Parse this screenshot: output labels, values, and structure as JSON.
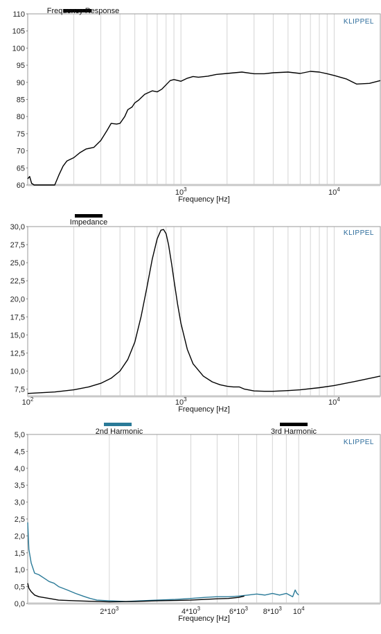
{
  "brand": "KLIPPEL",
  "chart_data": [
    {
      "type": "line",
      "title": "Frequency Response",
      "xlabel": "Frequency  [Hz]",
      "ylabel": "",
      "xscale": "log",
      "xlim": [
        100,
        20000
      ],
      "ylim": [
        60,
        110
      ],
      "yticks": [
        "60",
        "65",
        "70",
        "75",
        "80",
        "85",
        "90",
        "95",
        "100",
        "105",
        "110"
      ],
      "xticks": [
        {
          "value": 1000,
          "base": "10",
          "exp": "3"
        },
        {
          "value": 10000,
          "base": "10",
          "exp": "4"
        }
      ],
      "grid": true,
      "legend_position": "top-left",
      "series": [
        {
          "name": "Frequency Response",
          "color": "#000000",
          "x": [
            100,
            103,
            106,
            110,
            130,
            150,
            160,
            170,
            180,
            200,
            220,
            240,
            270,
            300,
            330,
            350,
            380,
            400,
            430,
            450,
            480,
            500,
            530,
            550,
            580,
            600,
            650,
            700,
            750,
            800,
            850,
            900,
            1000,
            1100,
            1200,
            1300,
            1500,
            1700,
            2000,
            2500,
            3000,
            3500,
            4000,
            5000,
            6000,
            7000,
            8000,
            9000,
            10000,
            12000,
            14000,
            17000,
            20000
          ],
          "y": [
            61.8,
            62.5,
            60.5,
            59.2,
            59.6,
            60,
            63,
            65.5,
            67,
            68,
            69.5,
            70.5,
            71,
            73,
            76,
            78,
            77.8,
            78,
            80,
            82,
            82.8,
            84,
            84.8,
            85.5,
            86.5,
            86.8,
            87.5,
            87.2,
            88,
            89.3,
            90.5,
            90.8,
            90.3,
            91.2,
            91.7,
            91.5,
            91.8,
            92.3,
            92.6,
            93,
            92.5,
            92.5,
            92.8,
            93,
            92.6,
            93.2,
            93,
            92.5,
            92,
            91,
            89.5,
            89.7,
            90.5
          ]
        }
      ]
    },
    {
      "type": "line",
      "title": "Impedance",
      "xlabel": "Frequency  [Hz]",
      "ylabel": "",
      "xscale": "log",
      "xlim": [
        100,
        20000
      ],
      "ylim": [
        6.5,
        30
      ],
      "yticks": [
        "7,5",
        "10,0",
        "12,5",
        "15,0",
        "17,5",
        "20,0",
        "22,5",
        "25,0",
        "27,5",
        "30,0"
      ],
      "xticks": [
        {
          "value": 100,
          "base": "10",
          "exp": "2"
        },
        {
          "value": 1000,
          "base": "10",
          "exp": "3"
        },
        {
          "value": 10000,
          "base": "10",
          "exp": "4"
        }
      ],
      "grid": true,
      "legend_position": "top-left",
      "series": [
        {
          "name": "Impedance",
          "color": "#000000",
          "x": [
            100,
            150,
            200,
            250,
            300,
            350,
            400,
            450,
            500,
            550,
            600,
            650,
            700,
            740,
            770,
            800,
            830,
            870,
            900,
            950,
            1000,
            1100,
            1200,
            1400,
            1600,
            1800,
            2000,
            2200,
            2400,
            2600,
            3000,
            3500,
            4000,
            5000,
            6000,
            8000,
            10000,
            14000,
            20000
          ],
          "y": [
            6.9,
            7.1,
            7.4,
            7.8,
            8.3,
            9.0,
            10.0,
            11.6,
            14.0,
            17.6,
            21.6,
            25.5,
            28.3,
            29.5,
            29.6,
            29.0,
            27.5,
            24.8,
            22.6,
            19.3,
            16.6,
            13.0,
            11.0,
            9.3,
            8.5,
            8.1,
            7.9,
            7.8,
            7.8,
            7.5,
            7.25,
            7.2,
            7.2,
            7.3,
            7.4,
            7.7,
            8.0,
            8.6,
            9.3
          ]
        }
      ]
    },
    {
      "type": "line",
      "title": "",
      "xlabel": "Frequency  [Hz]",
      "ylabel": "",
      "xscale": "log",
      "xlim": [
        1000,
        20000
      ],
      "ylim": [
        0,
        5
      ],
      "yticks": [
        "0,0",
        "0,5",
        "1,0",
        "1,5",
        "2,0",
        "2,5",
        "3,0",
        "3,5",
        "4,0",
        "4,5",
        "5,0"
      ],
      "xticks": [
        {
          "value": 2000,
          "label": "2*10",
          "exp": "3"
        },
        {
          "value": 4000,
          "label": "4*10",
          "exp": "3"
        },
        {
          "value": 6000,
          "label": "6*10",
          "exp": "3"
        },
        {
          "value": 8000,
          "label": "8*10",
          "exp": "3"
        },
        {
          "value": 10000,
          "label": "10",
          "exp": "4"
        }
      ],
      "grid": true,
      "legend_position": "top",
      "series": [
        {
          "name": "2nd Harmonic",
          "color": "#2a7a98",
          "x": [
            1000,
            1010,
            1030,
            1060,
            1100,
            1150,
            1200,
            1250,
            1300,
            1400,
            1500,
            1600,
            1700,
            1800,
            2000,
            2300,
            2600,
            3000,
            3500,
            4000,
            4500,
            5000,
            5500,
            6000,
            6500,
            7000,
            7500,
            8000,
            8500,
            9000,
            9500,
            9700,
            9850,
            10000
          ],
          "y": [
            2.4,
            1.6,
            1.2,
            0.9,
            0.85,
            0.75,
            0.65,
            0.6,
            0.5,
            0.4,
            0.3,
            0.22,
            0.15,
            0.1,
            0.08,
            0.06,
            0.08,
            0.1,
            0.12,
            0.15,
            0.18,
            0.2,
            0.2,
            0.22,
            0.25,
            0.28,
            0.25,
            0.3,
            0.25,
            0.3,
            0.2,
            0.4,
            0.3,
            0.25
          ]
        },
        {
          "name": "3rd Harmonic",
          "color": "#000000",
          "x": [
            1000,
            1010,
            1030,
            1060,
            1100,
            1200,
            1300,
            1500,
            1800,
            2000,
            2500,
            3000,
            3500,
            4000,
            4500,
            5000,
            5500,
            6000,
            6300
          ],
          "y": [
            0.6,
            0.45,
            0.35,
            0.25,
            0.2,
            0.15,
            0.1,
            0.08,
            0.06,
            0.05,
            0.06,
            0.08,
            0.09,
            0.1,
            0.12,
            0.14,
            0.15,
            0.18,
            0.22
          ]
        }
      ]
    }
  ]
}
